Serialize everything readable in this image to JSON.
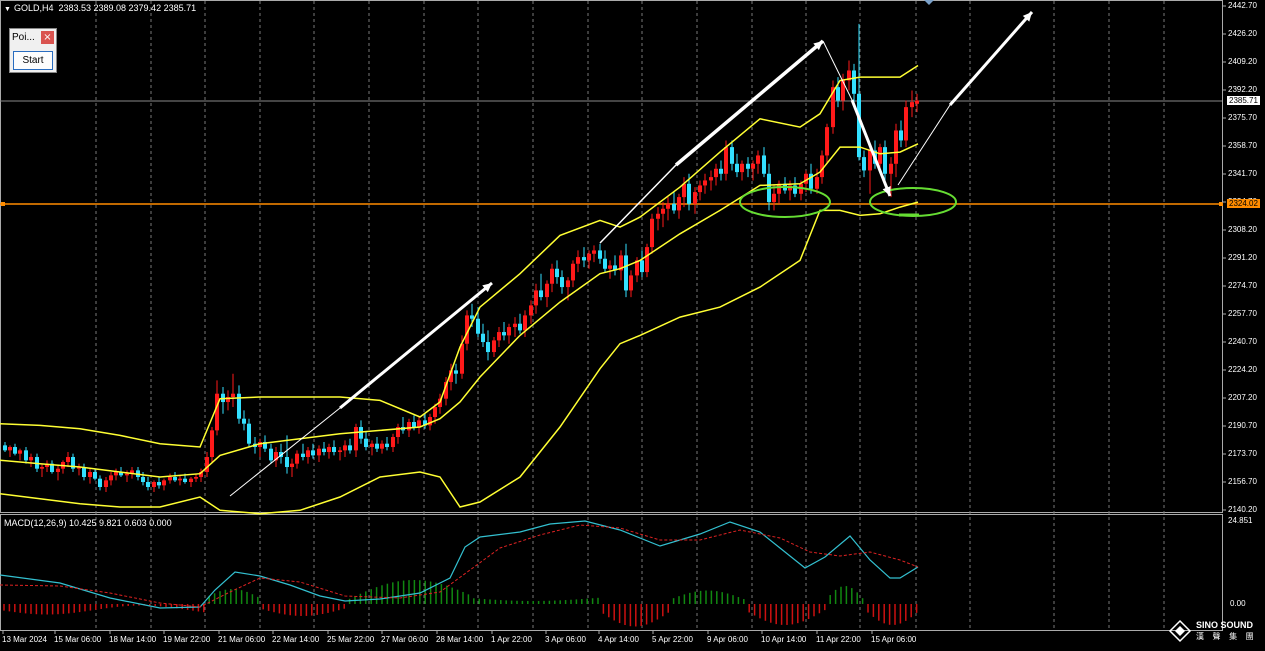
{
  "header": {
    "symbol_timeframe": "GOLD,H4",
    "ohlc": "2383.53 2389.08 2379.42 2385.71"
  },
  "ea_panel": {
    "title": "Poi...",
    "close_label": "×",
    "start_label": "Start"
  },
  "macd": {
    "label": "MACD(12,26,9) 10.425 9.821 0.603 0.000",
    "axis_top": "24.851",
    "axis_zero": "0.00"
  },
  "price_axis": {
    "ticks": [
      "2442.70",
      "2426.20",
      "2409.20",
      "2392.20",
      "2375.70",
      "2358.70",
      "2341.70",
      "2324.70",
      "2308.20",
      "2291.20",
      "2274.70",
      "2257.70",
      "2240.70",
      "2224.20",
      "2207.20",
      "2190.70",
      "2173.70",
      "2156.70",
      "2140.20"
    ],
    "current_price": "2385.71",
    "level_price": "2324.02"
  },
  "time_axis": {
    "ticks": [
      "13 Mar 2024",
      "15 Mar 06:00",
      "18 Mar 14:00",
      "19 Mar 22:00",
      "21 Mar 06:00",
      "22 Mar 14:00",
      "25 Mar 22:00",
      "27 Mar 06:00",
      "28 Mar 14:00",
      "1 Apr 22:00",
      "3 Apr 06:00",
      "4 Apr 14:00",
      "5 Apr 22:00",
      "9 Apr 06:00",
      "10 Apr 14:00",
      "11 Apr 22:00",
      "15 Apr 06:00"
    ]
  },
  "colors": {
    "background": "#000000",
    "bull_candle": "#ff1a1a",
    "bear_candle": "#33e0ff",
    "bollinger": "#ffff33",
    "support_line": "#ff8c00",
    "ellipse": "#66dd33",
    "macd_line": "#33c0d0",
    "signal_line": "#dd2222",
    "hist_pos": "#118811",
    "hist_neg": "#cc1111"
  },
  "logo": {
    "name": "SINO SOUND",
    "sub": "漢 聲 集 團"
  }
}
